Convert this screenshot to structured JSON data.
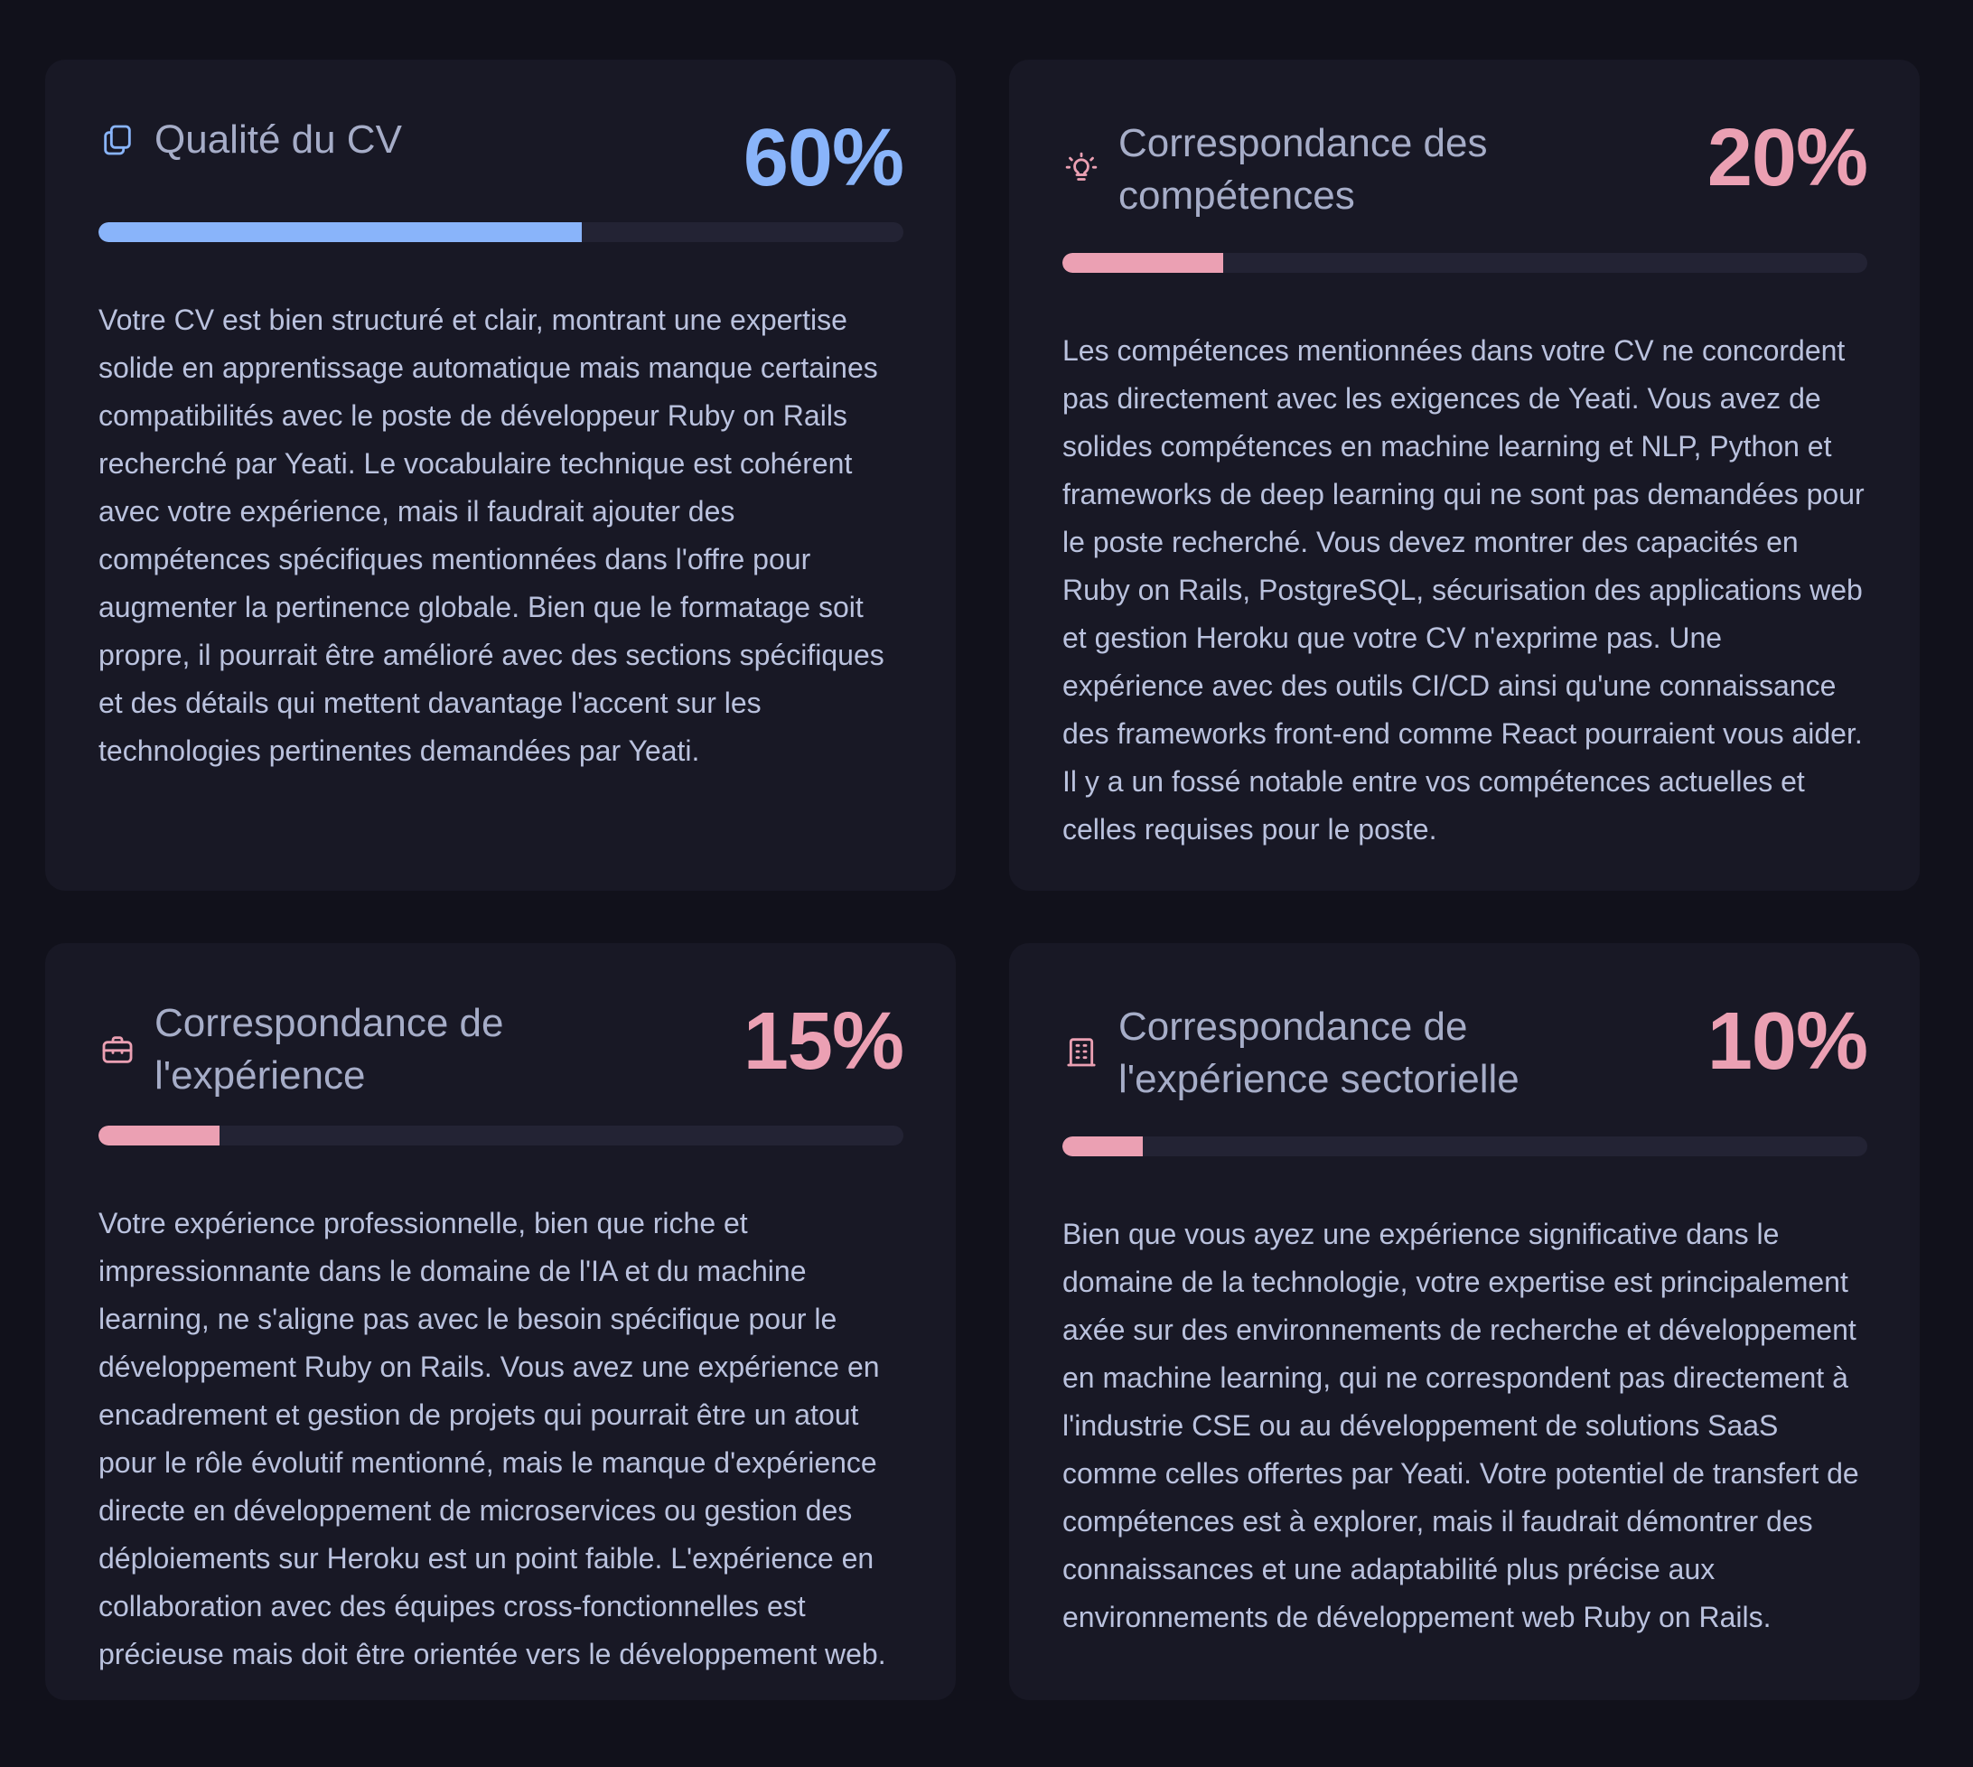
{
  "colors": {
    "blue": "#89b4fa",
    "pink": "#eba0b3",
    "track": "#232334"
  },
  "cards": [
    {
      "icon": "copy-icon",
      "title": "Qualité du CV",
      "score": "60%",
      "progress": 0.6,
      "accent": "#89b4fa",
      "description": "Votre CV est bien structuré et clair, montrant une expertise solide en apprentissage automatique mais manque certaines compatibilités avec le poste de développeur Ruby on Rails recherché par Yeati. Le vocabulaire technique est cohérent avec votre expérience, mais il faudrait ajouter des compétences spécifiques mentionnées dans l'offre pour augmenter la pertinence globale. Bien que le formatage soit propre, il pourrait être amélioré avec des sections spécifiques et des détails qui mettent davantage l'accent sur les technologies pertinentes demandées par Yeati."
    },
    {
      "icon": "lightbulb-icon",
      "title": "Correspondance des compétences",
      "score": "20%",
      "progress": 0.2,
      "accent": "#eba0b3",
      "description": "Les compétences mentionnées dans votre CV ne concordent pas directement avec les exigences de Yeati. Vous avez de solides compétences en machine learning et NLP, Python et frameworks de deep learning qui ne sont pas demandées pour le poste recherché. Vous devez montrer des capacités en Ruby on Rails, PostgreSQL, sécurisation des applications web et gestion Heroku que votre CV n'exprime pas. Une expérience avec des outils CI/CD ainsi qu'une connaissance des frameworks front-end comme React pourraient vous aider. Il y a un fossé notable entre vos compétences actuelles et celles requises pour le poste."
    },
    {
      "icon": "briefcase-icon",
      "title": "Correspondance de l'expérience",
      "score": "15%",
      "progress": 0.15,
      "accent": "#eba0b3",
      "description": "Votre expérience professionnelle, bien que riche et impressionnante dans le domaine de l'IA et du machine learning, ne s'aligne pas avec le besoin spécifique pour le développement Ruby on Rails. Vous avez une expérience en encadrement et gestion de projets qui pourrait être un atout pour le rôle évolutif mentionné, mais le manque d'expérience directe en développement de microservices ou gestion des déploiements sur Heroku est un point faible. L'expérience en collaboration avec des équipes cross-fonctionnelles est précieuse mais doit être orientée vers le développement web."
    },
    {
      "icon": "building-icon",
      "title": "Correspondance de l'expérience sectorielle",
      "score": "10%",
      "progress": 0.1,
      "accent": "#eba0b3",
      "description": "Bien que vous ayez une expérience significative dans le domaine de la technologie, votre expertise est principalement axée sur des environnements de recherche et développement en machine learning, qui ne correspondent pas directement à l'industrie CSE ou au développement de solutions SaaS comme celles offertes par Yeati. Votre potentiel de transfert de compétences est à explorer, mais il faudrait démontrer des connaissances et une adaptabilité plus précise aux environnements de développement web Ruby on Rails."
    }
  ]
}
